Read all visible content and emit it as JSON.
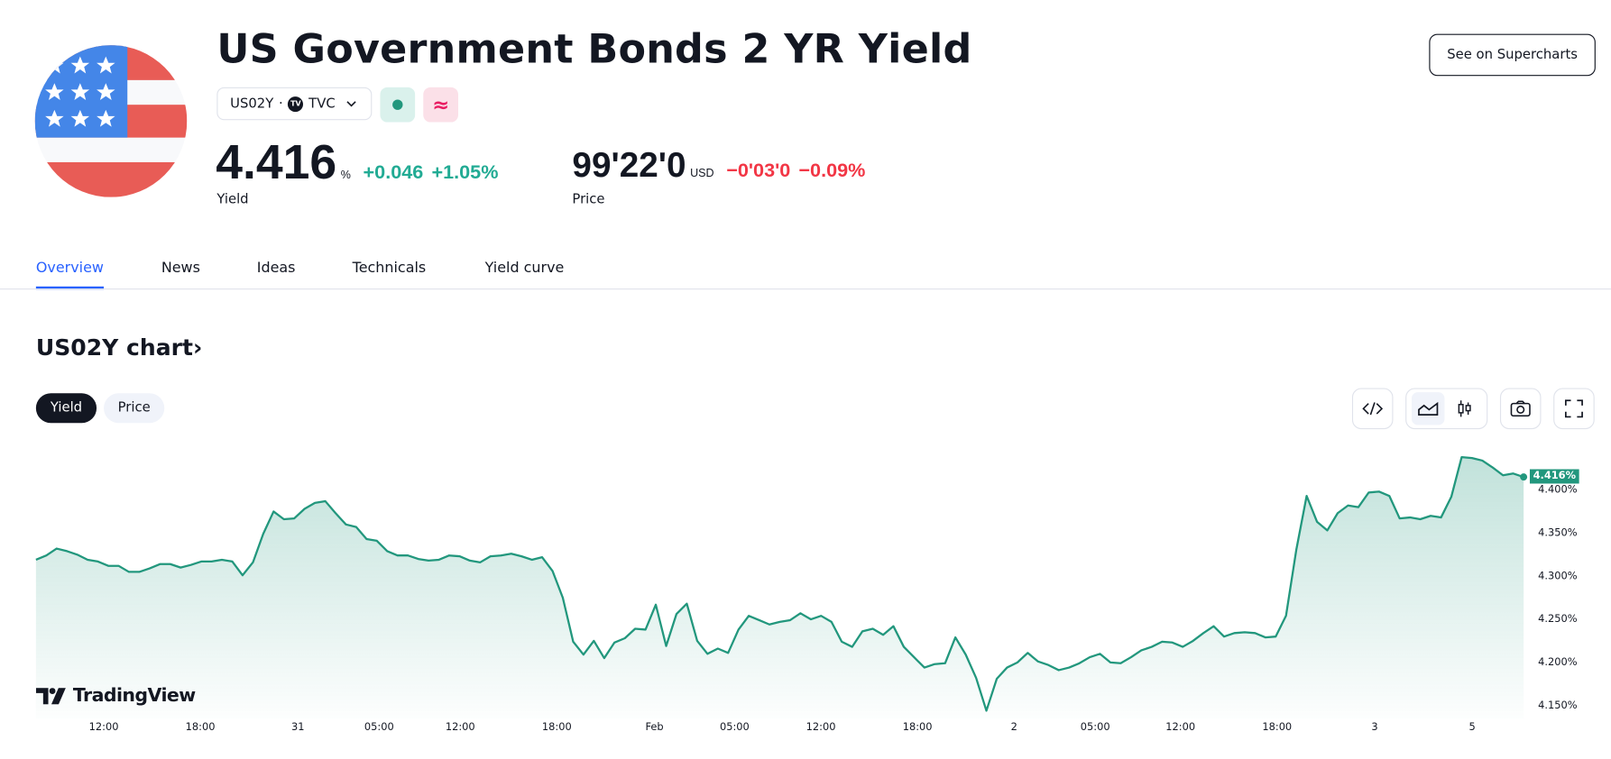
{
  "header": {
    "title": "US Government Bonds 2 YR Yield",
    "symbol": "US02Y",
    "separator": "·",
    "exchange": "TVC",
    "exchange_logo_text": "TV",
    "market_status_icon": "green-dot-icon",
    "delayed_icon": "approx-icon",
    "see_on_supercharts": "See on Supercharts"
  },
  "quotes": {
    "yield": {
      "value": "4.416",
      "unit": "%",
      "change": "+0.046",
      "change_pct": "+1.05%",
      "label": "Yield"
    },
    "price": {
      "value": "99'22'0",
      "unit": "USD",
      "change": "−0'03'0",
      "change_pct": "−0.09%",
      "label": "Price"
    }
  },
  "tabs": [
    {
      "label": "Overview",
      "active": true
    },
    {
      "label": "News"
    },
    {
      "label": "Ideas"
    },
    {
      "label": "Technicals"
    },
    {
      "label": "Yield curve"
    }
  ],
  "chart_section": {
    "title": "US02Y chart",
    "title_chevron": "›",
    "toggle": [
      {
        "label": "Yield",
        "active": true
      },
      {
        "label": "Price"
      }
    ],
    "toolbar": [
      "embed-code-icon",
      "area-chart-icon",
      "candles-icon",
      "camera-icon",
      "fullscreen-icon"
    ],
    "watermark": "TradingView"
  },
  "colors": {
    "up": "#22ab94",
    "down": "#f23645",
    "accent": "#2962ff",
    "line": "#22977d"
  },
  "chart_data": {
    "type": "area",
    "ylabel": "",
    "ylim": [
      4.14,
      4.445
    ],
    "y_ticks": [
      "4.400%",
      "4.350%",
      "4.300%",
      "4.250%",
      "4.200%",
      "4.150%"
    ],
    "x_ticks": [
      "12:00",
      "18:00",
      "31",
      "05:00",
      "12:00",
      "18:00",
      "Feb",
      "05:00",
      "12:00",
      "18:00",
      "2",
      "05:00",
      "12:00",
      "18:00",
      "3",
      "5"
    ],
    "last_value_label": "4.416%",
    "values": [
      4.32,
      4.325,
      4.333,
      4.33,
      4.326,
      4.32,
      4.318,
      4.313,
      4.313,
      4.306,
      4.306,
      4.31,
      4.315,
      4.315,
      4.311,
      4.314,
      4.318,
      4.318,
      4.32,
      4.318,
      4.302,
      4.317,
      4.35,
      4.376,
      4.367,
      4.368,
      4.379,
      4.386,
      4.388,
      4.374,
      4.361,
      4.358,
      4.344,
      4.342,
      4.33,
      4.325,
      4.325,
      4.321,
      4.319,
      4.32,
      4.325,
      4.324,
      4.319,
      4.317,
      4.324,
      4.325,
      4.327,
      4.324,
      4.32,
      4.323,
      4.307,
      4.276,
      4.225,
      4.21,
      4.226,
      4.206,
      4.224,
      4.229,
      4.24,
      4.239,
      4.268,
      4.22,
      4.257,
      4.269,
      4.226,
      4.211,
      4.217,
      4.212,
      4.239,
      4.255,
      4.25,
      4.245,
      4.248,
      4.25,
      4.258,
      4.251,
      4.255,
      4.248,
      4.225,
      4.219,
      4.237,
      4.24,
      4.233,
      4.243,
      4.219,
      4.207,
      4.195,
      4.199,
      4.2,
      4.23,
      4.21,
      4.183,
      4.145,
      4.182,
      4.195,
      4.201,
      4.212,
      4.202,
      4.198,
      4.192,
      4.195,
      4.2,
      4.207,
      4.211,
      4.201,
      4.2,
      4.207,
      4.215,
      4.219,
      4.225,
      4.224,
      4.219,
      4.226,
      4.235,
      4.243,
      4.231,
      4.235,
      4.236,
      4.235,
      4.23,
      4.231,
      4.255,
      4.332,
      4.394,
      4.364,
      4.354,
      4.374,
      4.383,
      4.381,
      4.398,
      4.399,
      4.394,
      4.368,
      4.369,
      4.367,
      4.371,
      4.369,
      4.393,
      4.439,
      4.438,
      4.435,
      4.427,
      4.418,
      4.42,
      4.416
    ]
  }
}
